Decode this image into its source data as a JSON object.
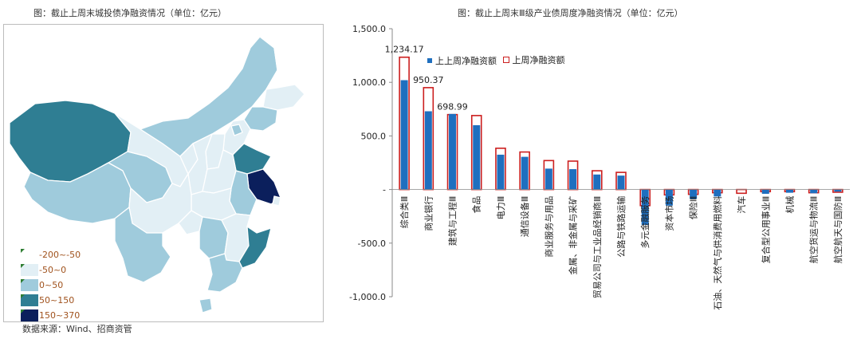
{
  "map": {
    "title": "图：截止上周末城投债净融资情况（单位：亿元）",
    "legend": [
      {
        "label": "-200~-50",
        "color": "#ffffff"
      },
      {
        "label": "-50~0",
        "color": "#e2eff5"
      },
      {
        "label": "0~50",
        "color": "#9fcbdc"
      },
      {
        "label": "50~150",
        "color": "#2f7e93"
      },
      {
        "label": "150~370",
        "color": "#0b1f5c"
      }
    ]
  },
  "source": "数据来源：Wind、招商资管",
  "chart_data": {
    "type": "bar",
    "title": "图：截止上周末Ⅲ级产业债周度净融资情况（单位：亿元）",
    "categories": [
      "综合类Ⅲ",
      "商业银行",
      "建筑与工程Ⅲ",
      "食品",
      "电力Ⅲ",
      "通信设备Ⅲ",
      "商业服务与用品",
      "金属、非金属与采矿",
      "贸易公司与工业品经销商Ⅲ",
      "公路与铁路运输",
      "多元金融服务",
      "资本市场",
      "保险Ⅲ",
      "石油、天然气与供消费用燃料",
      "汽车",
      "复合型公用事业Ⅲ",
      "机械",
      "航空货运与物流Ⅲ",
      "航空航天与国防Ⅲ"
    ],
    "series": [
      {
        "name": "上上周净融资额",
        "values": [
          1020,
          730,
          705,
          600,
          325,
          305,
          195,
          190,
          140,
          130,
          -330,
          -150,
          -85,
          -65,
          0,
          -40,
          -30,
          -35,
          -20
        ],
        "color": "#1f6fbf"
      },
      {
        "name": "上周净融资额",
        "values": [
          1234.17,
          950.37,
          698.99,
          690,
          385,
          350,
          270,
          265,
          175,
          160,
          -150,
          -50,
          -45,
          -30,
          -35,
          -20,
          -20,
          -30,
          -25
        ],
        "color": "#cc1f1f"
      }
    ],
    "data_labels": [
      "1,234.17",
      "950.37",
      "698.99"
    ],
    "yticks": [
      1500,
      1000,
      500,
      0,
      -500,
      -1000
    ],
    "ytick_labels": [
      "1,500.0",
      "1,000.0",
      "500.0",
      "-",
      "-500.0",
      "-1,000.0"
    ],
    "ylim": [
      -1000,
      1500
    ],
    "legend_position": "top-left",
    "grid": false
  }
}
